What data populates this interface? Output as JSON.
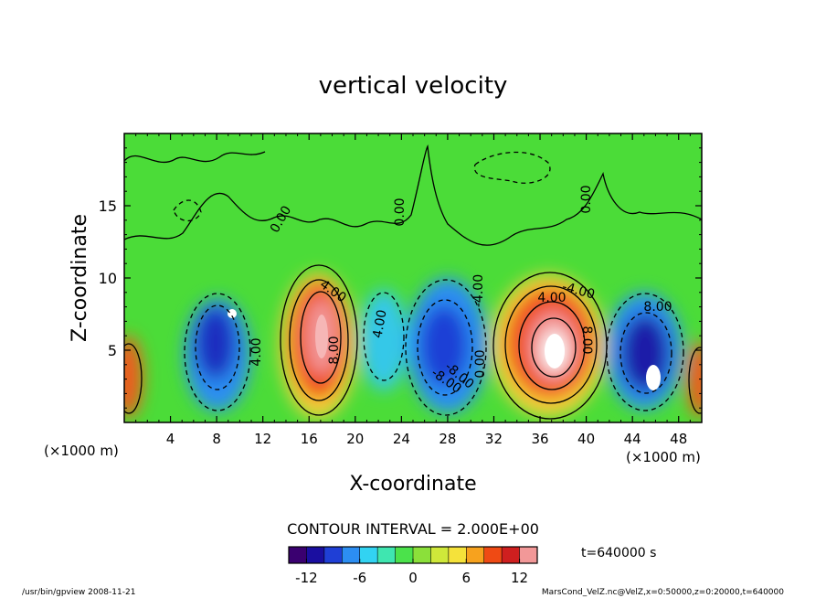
{
  "chart_data": {
    "type": "heatmap",
    "title": "vertical velocity",
    "xlabel": "X-coordinate",
    "ylabel": "Z-coordinate",
    "x_unit": "(×1000 m)",
    "y_unit": "(×1000 m)",
    "xlim": [
      0,
      50
    ],
    "ylim": [
      0,
      20
    ],
    "x_ticks": [
      4,
      8,
      12,
      16,
      20,
      24,
      28,
      32,
      36,
      40,
      44,
      48
    ],
    "y_ticks": [
      5,
      10,
      15
    ],
    "contour_interval_text": "CONTOUR INTERVAL = 2.000E+00",
    "time_text": "t=640000 s",
    "colorbar": {
      "range": [
        -14,
        14
      ],
      "ticks": [
        -12,
        -6,
        0,
        6,
        12
      ],
      "colors": [
        "#3a0070",
        "#1a0ea0",
        "#1f3fd6",
        "#2c8ef2",
        "#32d3f2",
        "#3fe6b0",
        "#4be24b",
        "#8be03a",
        "#cfe83a",
        "#f5e23a",
        "#f7a21e",
        "#ef4a14",
        "#cf1f1f",
        "#f29898"
      ]
    },
    "contour_labels": [
      "0.00",
      "0.00",
      "0.00",
      "4.00",
      "4.00",
      "4.00",
      "-4.00",
      "-4.00",
      "8.00",
      "-8.00",
      "8.00",
      "-8.00",
      "0.00",
      "4.00",
      "8.00"
    ],
    "cells": [
      {
        "x": 1,
        "z": 3,
        "value": 10
      },
      {
        "x": 8.5,
        "z": 4.5,
        "value": -12
      },
      {
        "x": 9.5,
        "z": 7.5,
        "value": -13
      },
      {
        "x": 17.5,
        "z": 6.5,
        "value": 13
      },
      {
        "x": 22.5,
        "z": 6,
        "value": -4
      },
      {
        "x": 27.5,
        "z": 5,
        "value": -10
      },
      {
        "x": 37.5,
        "z": 5,
        "value": 15
      },
      {
        "x": 46,
        "z": 4,
        "value": -12
      },
      {
        "x": 49.5,
        "z": 3,
        "value": 10
      }
    ],
    "footer_left": "/usr/bin/gpview   2008-11-21",
    "footer_right": "MarsCond_VelZ.nc@VelZ,x=0:50000,z=0:20000,t=640000"
  }
}
